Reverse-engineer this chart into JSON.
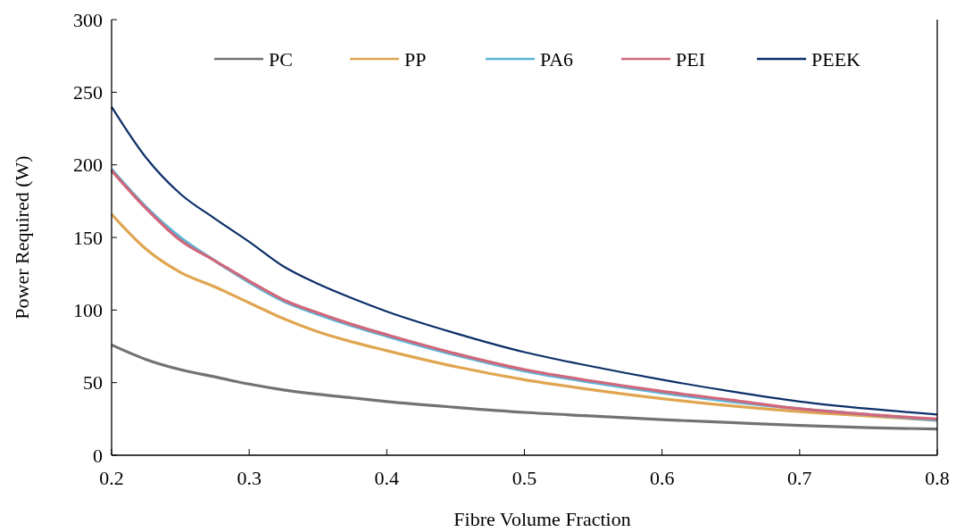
{
  "chart_data": {
    "type": "line",
    "xlabel": "Fibre Volume Fraction",
    "ylabel": "Power Required (W)",
    "x": [
      0.2,
      0.225,
      0.25,
      0.275,
      0.3,
      0.325,
      0.35,
      0.375,
      0.4,
      0.45,
      0.5,
      0.55,
      0.6,
      0.65,
      0.7,
      0.75,
      0.8
    ],
    "xlim": [
      0.2,
      0.8
    ],
    "xticks": [
      {
        "value": 0.2,
        "label": "0.2"
      },
      {
        "value": 0.3,
        "label": "0.3"
      },
      {
        "value": 0.4,
        "label": "0.4"
      },
      {
        "value": 0.5,
        "label": "0.5"
      },
      {
        "value": 0.6,
        "label": "0.6"
      },
      {
        "value": 0.7,
        "label": "0.7"
      },
      {
        "value": 0.8,
        "label": "0.8"
      }
    ],
    "ylim": [
      0,
      300
    ],
    "yticks": [
      0,
      50,
      100,
      150,
      200,
      250,
      300
    ],
    "grid": false,
    "legend": "top",
    "marker": "none",
    "line_style": "solid",
    "series": [
      {
        "name": "PC",
        "color": "#767171",
        "values": [
          76,
          66,
          59,
          54,
          49,
          45,
          42,
          39.5,
          37,
          33,
          29.5,
          27,
          24.5,
          22.5,
          20.5,
          19,
          18
        ]
      },
      {
        "name": "PP",
        "color": "#e0a550",
        "values": [
          166,
          142,
          126,
          116,
          105,
          94,
          85,
          78,
          72,
          61,
          52,
          45,
          39,
          34,
          30,
          27,
          24
        ]
      },
      {
        "name": "PA6",
        "color": "#5bb4d8",
        "values": [
          197,
          171,
          150,
          134,
          119,
          106,
          97,
          89,
          82,
          69,
          58,
          50,
          43,
          37,
          32,
          28,
          24
        ]
      },
      {
        "name": "PEI",
        "color": "#d0677a",
        "values": [
          196,
          170,
          148,
          134,
          120,
          107,
          98,
          90,
          83,
          70,
          59,
          51,
          44,
          38,
          32,
          28,
          25
        ]
      },
      {
        "name": "PEEK",
        "color": "#0b2f68",
        "values": [
          240,
          205,
          180,
          163,
          147,
          130,
          118,
          108,
          99,
          84,
          71,
          61,
          52,
          44,
          37,
          32,
          28
        ]
      }
    ]
  }
}
